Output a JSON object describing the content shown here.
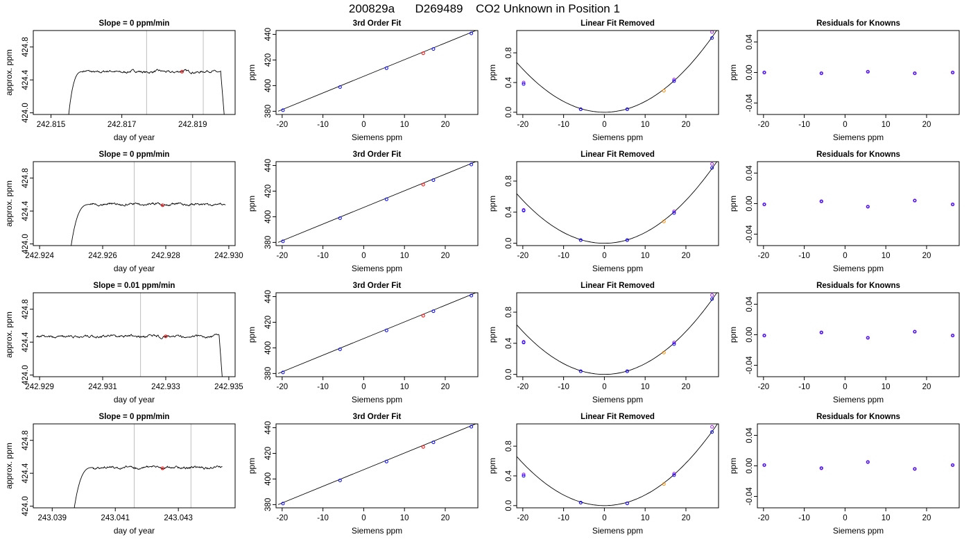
{
  "figure": {
    "title_parts": [
      "200829a",
      "D269489",
      "CO2 Unknown in Position  1"
    ]
  },
  "chart_data": [
    {
      "type": "line",
      "title": "Slope =  0  ppm/min",
      "xlabel": "day of year",
      "ylabel": "approx. ppm",
      "xlim": [
        242.8145,
        242.8202
      ],
      "ylim": [
        423.98,
        425.0
      ],
      "xticks": [
        242.815,
        242.817,
        242.819
      ],
      "xtick_labels": [
        "242.815",
        "242.817",
        "242.819"
      ],
      "yticks": [
        424.0,
        424.4,
        424.8
      ],
      "ytick_labels": [
        "424.0",
        "424.4",
        "424.8"
      ],
      "window": [
        242.8177,
        242.8193
      ],
      "marker": {
        "x": 242.8187,
        "y": 424.5
      },
      "trace": {
        "x_start": 242.8155,
        "x_rise_end": 242.8159,
        "x_plateau_end": 242.8198,
        "x_end": 242.8199,
        "plateau": 424.5,
        "noise": 0.02,
        "pre": "rise",
        "post": "drop"
      }
    },
    {
      "type": "line",
      "title": "3rd Order Fit",
      "xlabel": "Siemens ppm",
      "ylabel": "ppm",
      "xlim": [
        -21.5,
        28.0
      ],
      "ylim": [
        377.5,
        443.0
      ],
      "xticks": [
        -20,
        -10,
        0,
        10,
        20
      ],
      "xtick_labels": [
        "-20",
        "-10",
        "0",
        "10",
        "20"
      ],
      "yticks": [
        380,
        400,
        420,
        440
      ],
      "ytick_labels": [
        "380",
        "400",
        "420",
        "440"
      ],
      "line": {
        "x": [
          -21.0,
          27.5
        ],
        "y": [
          380.0,
          443.0
        ]
      },
      "knowns": {
        "x": [
          -19.8,
          -5.8,
          5.6,
          17.1,
          26.4
        ],
        "y": [
          380.8,
          398.9,
          413.6,
          428.6,
          440.8
        ]
      },
      "unknown": {
        "x": [
          14.6
        ],
        "y": [
          425.3
        ]
      }
    },
    {
      "type": "scatter",
      "title": "Linear Fit Removed",
      "xlabel": "Siemens ppm",
      "ylabel": "ppm",
      "xlim": [
        -21.5,
        28.0
      ],
      "ylim": [
        -0.03,
        1.1
      ],
      "xticks": [
        -20,
        -10,
        0,
        10,
        20
      ],
      "xtick_labels": [
        "-20",
        "-10",
        "0",
        "10",
        "20"
      ],
      "yticks": [
        0.0,
        0.4,
        0.8
      ],
      "ytick_labels": [
        "0.0",
        "0.4",
        "0.8"
      ],
      "curve_coef": 0.00145,
      "knowns": {
        "x": [
          -19.8,
          -5.8,
          5.6,
          17.1,
          26.4
        ],
        "y": [
          0.38,
          0.04,
          0.04,
          0.42,
          1.0
        ]
      },
      "knowns_alt": {
        "x": [
          -19.8,
          -5.8,
          5.6,
          17.1,
          26.4
        ],
        "y": [
          0.4,
          0.04,
          0.04,
          0.44,
          1.08
        ]
      },
      "unknown": {
        "x": [
          14.6
        ],
        "y": [
          0.29
        ]
      }
    },
    {
      "type": "scatter",
      "title": "Residuals for Knowns",
      "xlabel": "Siemens ppm",
      "ylabel": "ppm",
      "xlim": [
        -21.5,
        28.0
      ],
      "ylim": [
        -0.055,
        0.055
      ],
      "xticks": [
        -20,
        -10,
        0,
        10,
        20
      ],
      "xtick_labels": [
        "-20",
        "-10",
        "0",
        "10",
        "20"
      ],
      "yticks": [
        -0.04,
        0.0,
        0.04
      ],
      "ytick_labels": [
        "-0.04",
        "0.00",
        "0.04"
      ],
      "points": {
        "x": [
          -19.8,
          -5.8,
          5.6,
          17.1,
          26.4
        ],
        "y": [
          0.0,
          -0.001,
          0.001,
          -0.001,
          0.0
        ]
      }
    },
    {
      "type": "line",
      "title": "Slope =  0  ppm/min",
      "xlabel": "day of year",
      "ylabel": "approx. ppm",
      "xlim": [
        242.9238,
        242.9302
      ],
      "ylim": [
        423.98,
        425.0
      ],
      "xticks": [
        242.924,
        242.926,
        242.928,
        242.93
      ],
      "xtick_labels": [
        "242.924",
        "242.926",
        "242.928",
        "242.930"
      ],
      "yticks": [
        424.0,
        424.4,
        424.8
      ],
      "ytick_labels": [
        "424.0",
        "424.4",
        "424.8"
      ],
      "window": [
        242.927,
        242.9288
      ],
      "marker": {
        "x": 242.9279,
        "y": 424.47
      },
      "trace": {
        "x_start": 242.925,
        "x_rise_end": 242.9256,
        "x_plateau_end": 242.9299,
        "x_end": 242.9299,
        "plateau": 424.48,
        "noise": 0.02,
        "pre": "rise",
        "post": "none"
      }
    },
    {
      "type": "line",
      "title": "3rd Order Fit",
      "xlabel": "Siemens ppm",
      "ylabel": "ppm",
      "xlim": [
        -21.5,
        28.0
      ],
      "ylim": [
        377.5,
        443.0
      ],
      "xticks": [
        -20,
        -10,
        0,
        10,
        20
      ],
      "xtick_labels": [
        "-20",
        "-10",
        "0",
        "10",
        "20"
      ],
      "yticks": [
        380,
        400,
        420,
        440
      ],
      "ytick_labels": [
        "380",
        "400",
        "420",
        "440"
      ],
      "line": {
        "x": [
          -21.0,
          27.5
        ],
        "y": [
          380.0,
          443.0
        ]
      },
      "knowns": {
        "x": [
          -19.8,
          -5.8,
          5.6,
          17.1,
          26.4
        ],
        "y": [
          380.8,
          398.9,
          413.6,
          428.6,
          440.8
        ]
      },
      "unknown": {
        "x": [
          14.6
        ],
        "y": [
          425.1
        ]
      }
    },
    {
      "type": "scatter",
      "title": "Linear Fit Removed",
      "xlabel": "Siemens ppm",
      "ylabel": "ppm",
      "xlim": [
        -21.5,
        28.0
      ],
      "ylim": [
        -0.03,
        1.05
      ],
      "xticks": [
        -20,
        -10,
        0,
        10,
        20
      ],
      "xtick_labels": [
        "-20",
        "-10",
        "0",
        "10",
        "20"
      ],
      "yticks": [
        0.0,
        0.4,
        0.8
      ],
      "ytick_labels": [
        "0.0",
        "0.4",
        "0.8"
      ],
      "curve_coef": 0.00138,
      "knowns": {
        "x": [
          -19.8,
          -5.8,
          5.6,
          17.1,
          26.4
        ],
        "y": [
          0.42,
          0.04,
          0.04,
          0.39,
          0.97
        ]
      },
      "knowns_alt": {
        "x": [
          -19.8,
          -5.8,
          5.6,
          17.1,
          26.4
        ],
        "y": [
          0.43,
          0.04,
          0.04,
          0.41,
          1.02
        ]
      },
      "unknown": {
        "x": [
          14.6
        ],
        "y": [
          0.28
        ]
      }
    },
    {
      "type": "scatter",
      "title": "Residuals for Knowns",
      "xlabel": "Siemens ppm",
      "ylabel": "ppm",
      "xlim": [
        -21.5,
        28.0
      ],
      "ylim": [
        -0.055,
        0.055
      ],
      "xticks": [
        -20,
        -10,
        0,
        10,
        20
      ],
      "xtick_labels": [
        "-20",
        "-10",
        "0",
        "10",
        "20"
      ],
      "yticks": [
        -0.04,
        0.0,
        0.04
      ],
      "ytick_labels": [
        "-0.04",
        "0.00",
        "0.04"
      ],
      "points": {
        "x": [
          -19.8,
          -5.8,
          5.6,
          17.1,
          26.4
        ],
        "y": [
          -0.001,
          0.003,
          -0.004,
          0.004,
          -0.001
        ]
      }
    },
    {
      "type": "line",
      "title": "Slope =  0.01  ppm/min",
      "xlabel": "day of year",
      "ylabel": "approx. ppm",
      "xlim": [
        242.9288,
        242.9352
      ],
      "ylim": [
        423.98,
        425.0
      ],
      "xticks": [
        242.929,
        242.931,
        242.933,
        242.935
      ],
      "xtick_labels": [
        "242.929",
        "242.931",
        "242.933",
        "242.935"
      ],
      "yticks": [
        424.0,
        424.4,
        424.8
      ],
      "ytick_labels": [
        "424.0",
        "424.4",
        "424.8"
      ],
      "window": [
        242.9322,
        242.934
      ],
      "marker": {
        "x": 242.933,
        "y": 424.47
      },
      "trace": {
        "x_start": 242.9289,
        "x_rise_end": 242.9289,
        "x_plateau_end": 242.9347,
        "x_end": 242.9348,
        "plateau": 424.47,
        "noise": 0.02,
        "pre": "none",
        "post": "drop"
      }
    },
    {
      "type": "line",
      "title": "3rd Order Fit",
      "xlabel": "Siemens ppm",
      "ylabel": "ppm",
      "xlim": [
        -21.5,
        28.0
      ],
      "ylim": [
        377.5,
        443.0
      ],
      "xticks": [
        -20,
        -10,
        0,
        10,
        20
      ],
      "xtick_labels": [
        "-20",
        "-10",
        "0",
        "10",
        "20"
      ],
      "yticks": [
        380,
        400,
        420,
        440
      ],
      "ytick_labels": [
        "380",
        "400",
        "420",
        "440"
      ],
      "line": {
        "x": [
          -21.0,
          27.5
        ],
        "y": [
          380.0,
          443.0
        ]
      },
      "knowns": {
        "x": [
          -19.8,
          -5.8,
          5.6,
          17.1,
          26.4
        ],
        "y": [
          380.8,
          398.9,
          413.6,
          428.6,
          440.8
        ]
      },
      "unknown": {
        "x": [
          14.6
        ],
        "y": [
          425.1
        ]
      }
    },
    {
      "type": "scatter",
      "title": "Linear Fit Removed",
      "xlabel": "Siemens ppm",
      "ylabel": "ppm",
      "xlim": [
        -21.5,
        28.0
      ],
      "ylim": [
        -0.03,
        1.05
      ],
      "xticks": [
        -20,
        -10,
        0,
        10,
        20
      ],
      "xtick_labels": [
        "-20",
        "-10",
        "0",
        "10",
        "20"
      ],
      "yticks": [
        0.0,
        0.4,
        0.8
      ],
      "ytick_labels": [
        "0.0",
        "0.4",
        "0.8"
      ],
      "curve_coef": 0.00138,
      "knowns": {
        "x": [
          -19.8,
          -5.8,
          5.6,
          17.1,
          26.4
        ],
        "y": [
          0.41,
          0.04,
          0.04,
          0.39,
          0.97
        ]
      },
      "knowns_alt": {
        "x": [
          -19.8,
          -5.8,
          5.6,
          17.1,
          26.4
        ],
        "y": [
          0.42,
          0.04,
          0.04,
          0.41,
          1.02
        ]
      },
      "unknown": {
        "x": [
          14.6
        ],
        "y": [
          0.28
        ]
      }
    },
    {
      "type": "scatter",
      "title": "Residuals for Knowns",
      "xlabel": "Siemens ppm",
      "ylabel": "ppm",
      "xlim": [
        -21.5,
        28.0
      ],
      "ylim": [
        -0.055,
        0.055
      ],
      "xticks": [
        -20,
        -10,
        0,
        10,
        20
      ],
      "xtick_labels": [
        "-20",
        "-10",
        "0",
        "10",
        "20"
      ],
      "yticks": [
        -0.04,
        0.0,
        0.04
      ],
      "ytick_labels": [
        "-0.04",
        "0.00",
        "0.04"
      ],
      "points": {
        "x": [
          -19.8,
          -5.8,
          5.6,
          17.1,
          26.4
        ],
        "y": [
          -0.001,
          0.003,
          -0.004,
          0.004,
          -0.001
        ]
      }
    },
    {
      "type": "line",
      "title": "Slope =  0  ppm/min",
      "xlabel": "day of year",
      "ylabel": "approx. ppm",
      "xlim": [
        243.0384,
        243.0448
      ],
      "ylim": [
        423.98,
        425.0
      ],
      "xticks": [
        243.039,
        243.041,
        243.043
      ],
      "xtick_labels": [
        "243.039",
        "243.041",
        "243.043"
      ],
      "yticks": [
        424.0,
        424.4,
        424.8
      ],
      "ytick_labels": [
        "424.0",
        "424.4",
        "424.8"
      ],
      "window": [
        243.0416,
        243.0434
      ],
      "marker": {
        "x": 243.0425,
        "y": 424.46
      },
      "trace": {
        "x_start": 243.0397,
        "x_rise_end": 243.0403,
        "x_plateau_end": 243.0444,
        "x_end": 243.0444,
        "plateau": 424.47,
        "noise": 0.02,
        "pre": "rise",
        "post": "none"
      }
    },
    {
      "type": "line",
      "title": "3rd Order Fit",
      "xlabel": "Siemens ppm",
      "ylabel": "ppm",
      "xlim": [
        -21.5,
        28.0
      ],
      "ylim": [
        377.5,
        443.0
      ],
      "xticks": [
        -20,
        -10,
        0,
        10,
        20
      ],
      "xtick_labels": [
        "-20",
        "-10",
        "0",
        "10",
        "20"
      ],
      "yticks": [
        380,
        400,
        420,
        440
      ],
      "ytick_labels": [
        "380",
        "400",
        "420",
        "440"
      ],
      "line": {
        "x": [
          -21.0,
          27.5
        ],
        "y": [
          380.0,
          443.0
        ]
      },
      "knowns": {
        "x": [
          -19.8,
          -5.8,
          5.6,
          17.1,
          26.4
        ],
        "y": [
          380.8,
          398.9,
          413.6,
          428.6,
          440.8
        ]
      },
      "unknown": {
        "x": [
          14.6
        ],
        "y": [
          425.0
        ]
      }
    },
    {
      "type": "scatter",
      "title": "Linear Fit Removed",
      "xlabel": "Siemens ppm",
      "ylabel": "ppm",
      "xlim": [
        -21.5,
        28.0
      ],
      "ylim": [
        -0.03,
        1.1
      ],
      "xticks": [
        -20,
        -10,
        0,
        10,
        20
      ],
      "xtick_labels": [
        "-20",
        "-10",
        "0",
        "10",
        "20"
      ],
      "yticks": [
        0.0,
        0.4,
        0.8
      ],
      "ytick_labels": [
        "0.0",
        "0.4",
        "0.8"
      ],
      "curve_coef": 0.00143,
      "knowns": {
        "x": [
          -19.8,
          -5.8,
          5.6,
          17.1,
          26.4
        ],
        "y": [
          0.4,
          0.04,
          0.03,
          0.41,
          0.99
        ]
      },
      "knowns_alt": {
        "x": [
          -19.8,
          -5.8,
          5.6,
          17.1,
          26.4
        ],
        "y": [
          0.42,
          0.04,
          0.03,
          0.43,
          1.06
        ]
      },
      "unknown": {
        "x": [
          14.6
        ],
        "y": [
          0.29
        ]
      }
    },
    {
      "type": "scatter",
      "title": "Residuals for Knowns",
      "xlabel": "Siemens ppm",
      "ylabel": "ppm",
      "xlim": [
        -21.5,
        28.0
      ],
      "ylim": [
        -0.055,
        0.055
      ],
      "xticks": [
        -20,
        -10,
        0,
        10,
        20
      ],
      "xtick_labels": [
        "-20",
        "-10",
        "0",
        "10",
        "20"
      ],
      "yticks": [
        -0.04,
        0.0,
        0.04
      ],
      "ytick_labels": [
        "-0.04",
        "0.00",
        "0.04"
      ],
      "points": {
        "x": [
          -19.8,
          -5.8,
          5.6,
          17.1,
          26.4
        ],
        "y": [
          0.001,
          -0.003,
          0.005,
          -0.004,
          0.001
        ]
      }
    }
  ],
  "colors": {
    "line": "#000000",
    "grid": "#bebebe",
    "known": "#0000ff",
    "known_alt": "#a020f0",
    "unknown": "#ff0000",
    "unknown_alt": "#ff8c00",
    "residual": "#7a28f0"
  }
}
